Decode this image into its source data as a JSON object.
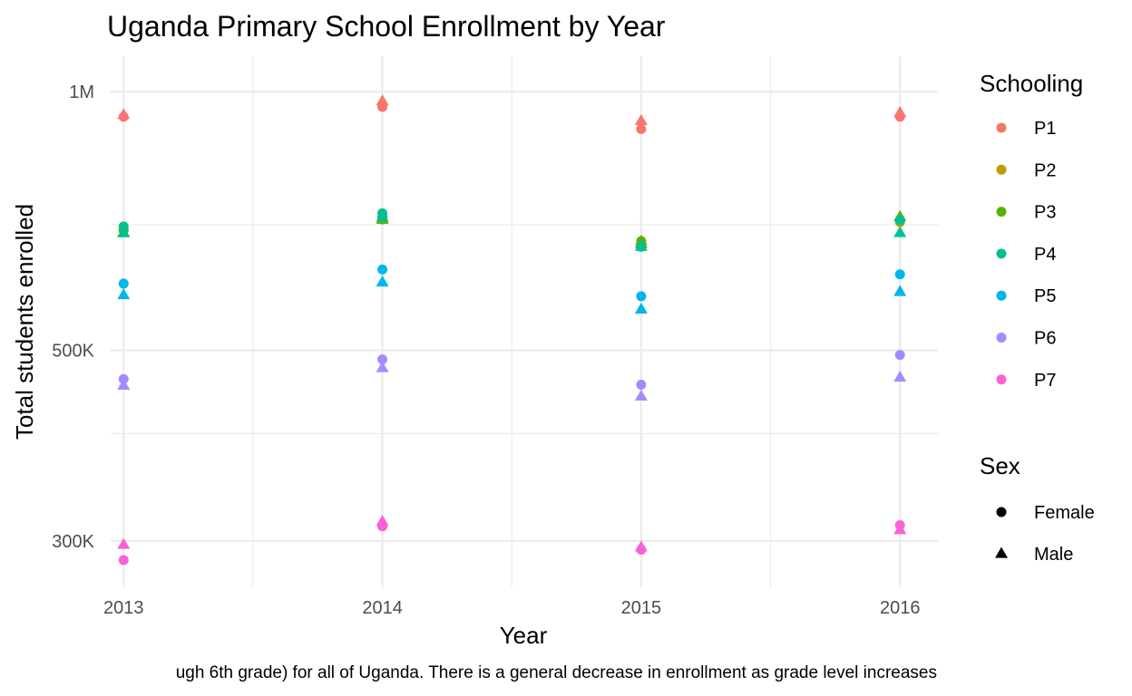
{
  "chart_data": {
    "type": "scatter",
    "title": "Uganda Primary School Enrollment by Year",
    "xlabel": "Year",
    "ylabel": "Total students enrolled",
    "caption": "ugh 6th grade) for all of Uganda. There is a general decrease in enrollment as grade level increases",
    "x_ticks": [
      2013,
      2014,
      2015,
      2016
    ],
    "y_scale": "log10",
    "y_ticks": [
      {
        "value": 300000,
        "label": "300K"
      },
      {
        "value": 500000,
        "label": "500K"
      },
      {
        "value": 1000000,
        "label": "1M"
      }
    ],
    "y_minor": [
      400000,
      700000
    ],
    "ylim": [
      265000,
      1100000
    ],
    "xlim": [
      2012.95,
      2016.15
    ],
    "grid": true,
    "legend_position": "right",
    "color_legend": {
      "title": "Schooling",
      "entries": [
        {
          "name": "P1",
          "color": "#F8766D"
        },
        {
          "name": "P2",
          "color": "#C49A00"
        },
        {
          "name": "P3",
          "color": "#53B400"
        },
        {
          "name": "P4",
          "color": "#00C094"
        },
        {
          "name": "P5",
          "color": "#00B6EB"
        },
        {
          "name": "P6",
          "color": "#A58AFF"
        },
        {
          "name": "P7",
          "color": "#FB61D7"
        }
      ]
    },
    "shape_legend": {
      "title": "Sex",
      "entries": [
        {
          "name": "Female",
          "shape": "circle"
        },
        {
          "name": "Male",
          "shape": "triangle"
        }
      ]
    },
    "series": [
      {
        "schooling": "P1",
        "sex": "Female",
        "x": [
          2013,
          2014,
          2015,
          2016
        ],
        "y": [
          935000,
          960000,
          905000,
          935000
        ]
      },
      {
        "schooling": "P1",
        "sex": "Male",
        "x": [
          2013,
          2014,
          2015,
          2016
        ],
        "y": [
          940000,
          975000,
          925000,
          945000
        ]
      },
      {
        "schooling": "P2",
        "sex": "Female",
        "x": [
          2013,
          2014,
          2015,
          2016
        ],
        "y": [
          690000,
          710000,
          665000,
          705000
        ]
      },
      {
        "schooling": "P2",
        "sex": "Male",
        "x": [
          2013,
          2014,
          2015,
          2016
        ],
        "y": [
          685000,
          710000,
          670000,
          715000
        ]
      },
      {
        "schooling": "P3",
        "sex": "Female",
        "x": [
          2013,
          2014,
          2015,
          2016
        ],
        "y": [
          690000,
          715000,
          670000,
          710000
        ]
      },
      {
        "schooling": "P3",
        "sex": "Male",
        "x": [
          2013,
          2014,
          2015,
          2016
        ],
        "y": [
          685000,
          710000,
          665000,
          715000
        ]
      },
      {
        "schooling": "P4",
        "sex": "Female",
        "x": [
          2013,
          2014,
          2015,
          2016
        ],
        "y": [
          697000,
          722000,
          660000,
          709000
        ]
      },
      {
        "schooling": "P4",
        "sex": "Male",
        "x": [
          2013,
          2014,
          2015,
          2016
        ],
        "y": [
          685000,
          714000,
          660000,
          685000
        ]
      },
      {
        "schooling": "P5",
        "sex": "Female",
        "x": [
          2013,
          2014,
          2015,
          2016
        ],
        "y": [
          598000,
          621000,
          578000,
          613000
        ]
      },
      {
        "schooling": "P5",
        "sex": "Male",
        "x": [
          2013,
          2014,
          2015,
          2016
        ],
        "y": [
          580000,
          600000,
          558000,
          585000
        ]
      },
      {
        "schooling": "P6",
        "sex": "Female",
        "x": [
          2013,
          2014,
          2015,
          2016
        ],
        "y": [
          463000,
          488000,
          456000,
          494000
        ]
      },
      {
        "schooling": "P6",
        "sex": "Male",
        "x": [
          2013,
          2014,
          2015,
          2016
        ],
        "y": [
          455000,
          477000,
          442000,
          465000
        ]
      },
      {
        "schooling": "P7",
        "sex": "Female",
        "x": [
          2013,
          2014,
          2015,
          2016
        ],
        "y": [
          285000,
          312000,
          293000,
          313000
        ]
      },
      {
        "schooling": "P7",
        "sex": "Male",
        "x": [
          2013,
          2014,
          2015,
          2016
        ],
        "y": [
          297000,
          316000,
          295000,
          309000
        ]
      }
    ]
  }
}
